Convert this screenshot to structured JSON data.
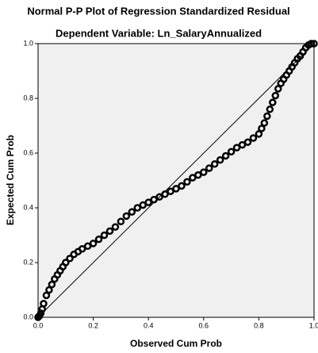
{
  "chart_data": {
    "type": "scatter",
    "title": "Normal P-P Plot of Regression Standardized Residual",
    "subtitle": "Dependent Variable: Ln_SalaryAnnualized",
    "x_label": "Observed Cum Prob",
    "y_label": "Expected Cum Prob",
    "color": "#000000",
    "x": [
      0,
      0.005,
      0.01,
      0.015,
      0.02,
      0.03,
      0.04,
      0.05,
      0.06,
      0.07,
      0.08,
      0.09,
      0.1,
      0.115,
      0.13,
      0.145,
      0.16,
      0.18,
      0.2,
      0.22,
      0.24,
      0.26,
      0.28,
      0.3,
      0.32,
      0.34,
      0.36,
      0.38,
      0.4,
      0.42,
      0.44,
      0.46,
      0.48,
      0.5,
      0.52,
      0.54,
      0.56,
      0.58,
      0.6,
      0.62,
      0.64,
      0.66,
      0.68,
      0.7,
      0.72,
      0.74,
      0.76,
      0.78,
      0.8,
      0.81,
      0.82,
      0.83,
      0.84,
      0.85,
      0.86,
      0.87,
      0.88,
      0.89,
      0.9,
      0.91,
      0.92,
      0.93,
      0.94,
      0.95,
      0.96,
      0.97,
      0.98,
      0.99,
      1.0
    ],
    "values": [
      0,
      0.005,
      0.015,
      0.03,
      0.05,
      0.08,
      0.1,
      0.12,
      0.14,
      0.155,
      0.17,
      0.185,
      0.2,
      0.215,
      0.23,
      0.24,
      0.25,
      0.26,
      0.27,
      0.285,
      0.3,
      0.315,
      0.33,
      0.35,
      0.37,
      0.385,
      0.4,
      0.41,
      0.42,
      0.43,
      0.44,
      0.45,
      0.46,
      0.47,
      0.48,
      0.495,
      0.51,
      0.52,
      0.53,
      0.545,
      0.56,
      0.575,
      0.59,
      0.605,
      0.62,
      0.63,
      0.64,
      0.655,
      0.67,
      0.69,
      0.71,
      0.735,
      0.76,
      0.785,
      0.81,
      0.835,
      0.855,
      0.87,
      0.885,
      0.9,
      0.915,
      0.93,
      0.945,
      0.955,
      0.97,
      0.985,
      0.995,
      1.0,
      1.0
    ],
    "xlim": [
      0,
      1
    ],
    "ylim": [
      0,
      1
    ],
    "xticks": [
      {
        "value": 0,
        "label": "0.0"
      },
      0.2,
      0.4,
      0.6,
      0.8,
      {
        "value": 1,
        "label": "1.0"
      }
    ],
    "yticks": [
      {
        "value": 0,
        "label": "0.0"
      },
      0.2,
      0.4,
      0.6,
      0.8,
      {
        "value": 1,
        "label": "1.0"
      }
    ]
  }
}
